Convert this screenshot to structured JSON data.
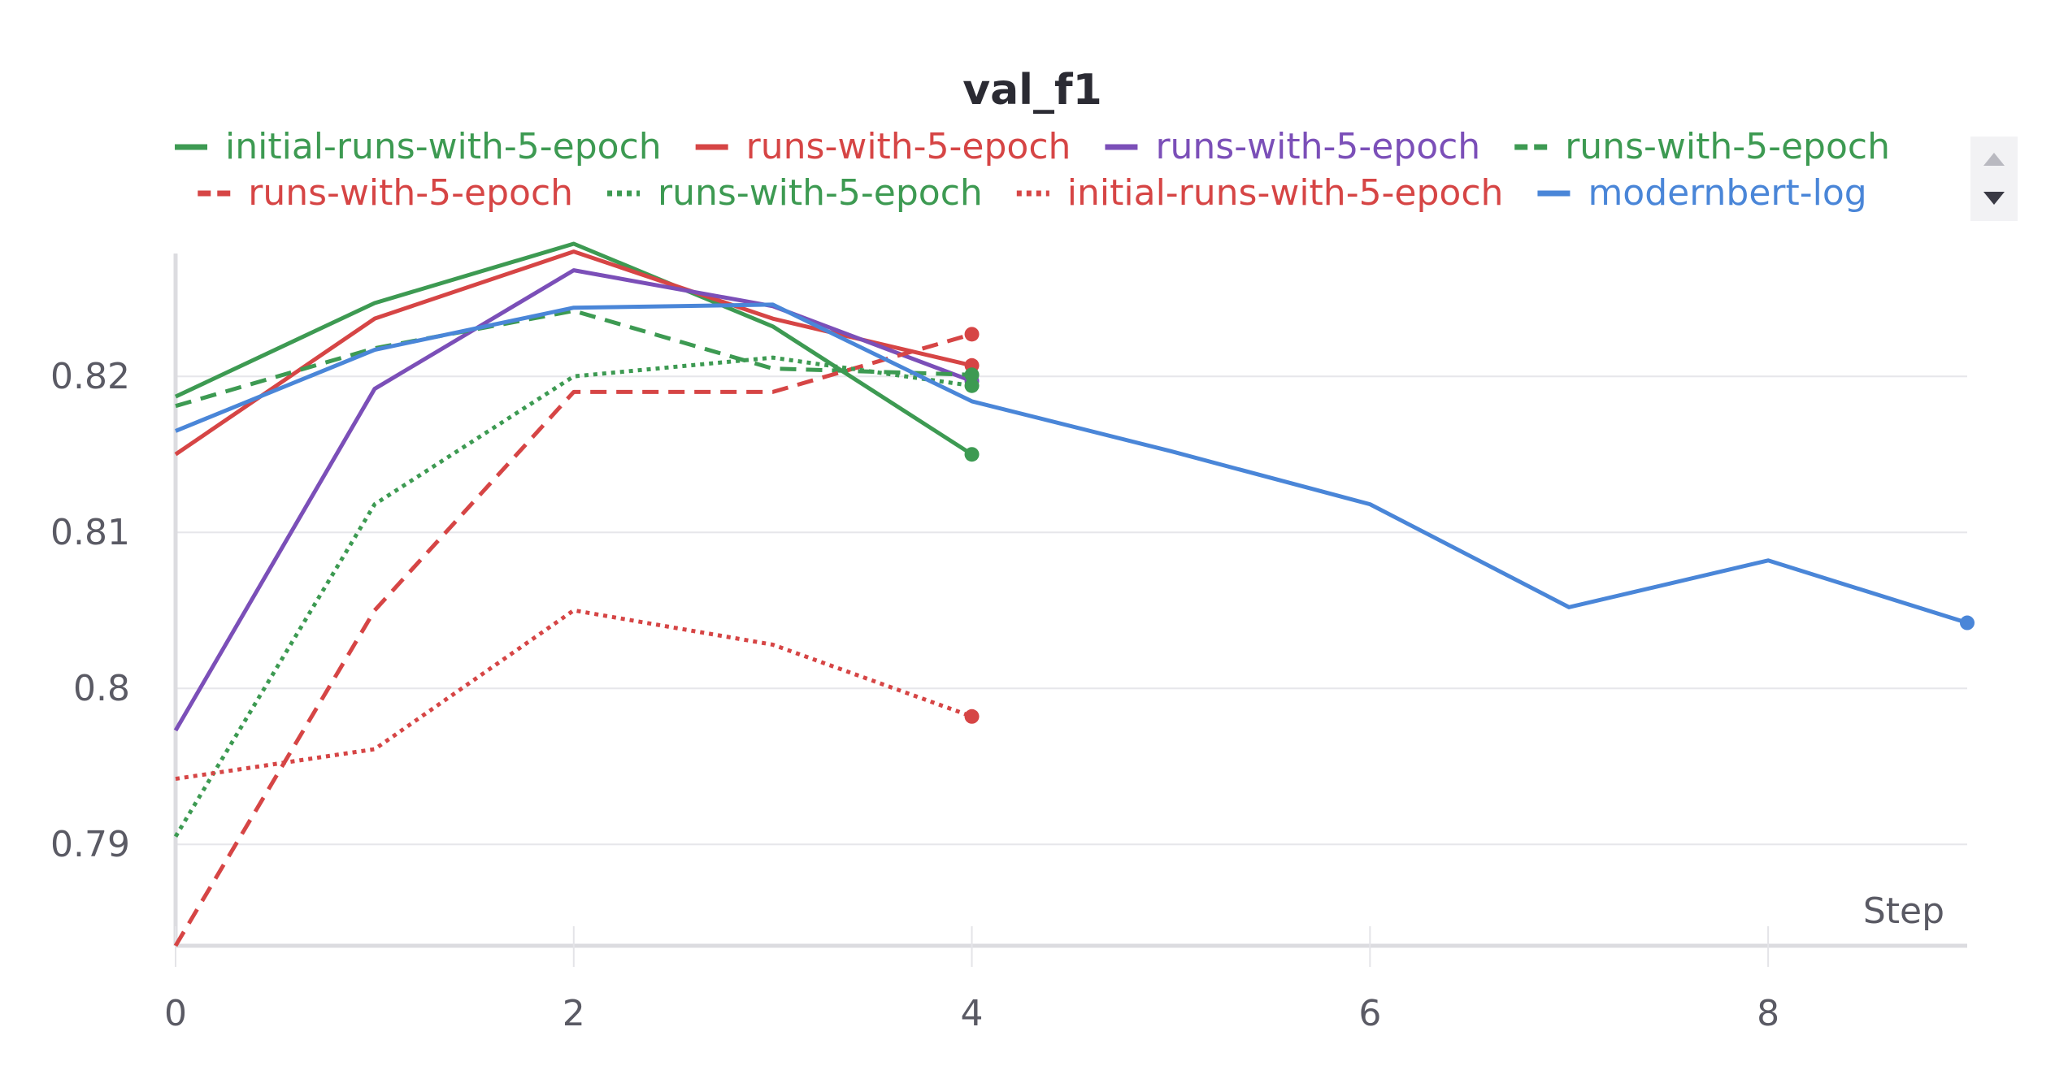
{
  "chart_data": {
    "type": "line",
    "title": "val_f1",
    "xlabel": "Step",
    "ylabel": "",
    "xlim": [
      0,
      9
    ],
    "ylim": [
      0.7835,
      0.8285
    ],
    "x_ticks": [
      "0",
      "2",
      "4",
      "6",
      "8"
    ],
    "y_ticks": [
      "0.79",
      "0.8",
      "0.81",
      "0.82"
    ],
    "grid": true,
    "legend_position": "top",
    "series": [
      {
        "name": "initial-runs-with-5-epoch",
        "color": "#3d9a52",
        "dash": "solid",
        "x": [
          0,
          1,
          2,
          3,
          4
        ],
        "y": [
          0.8187,
          0.8247,
          0.8285,
          0.8232,
          0.815
        ]
      },
      {
        "name": "runs-with-5-epoch",
        "color": "#d64545",
        "dash": "solid",
        "x": [
          0,
          1,
          2,
          3,
          4
        ],
        "y": [
          0.815,
          0.8237,
          0.828,
          0.8237,
          0.8207
        ]
      },
      {
        "name": "runs-with-5-epoch",
        "color": "#7b4fb8",
        "dash": "solid",
        "x": [
          0,
          1,
          2,
          3,
          4
        ],
        "y": [
          0.7973,
          0.8192,
          0.8268,
          0.8245,
          0.8197
        ]
      },
      {
        "name": "runs-with-5-epoch",
        "color": "#3d9a52",
        "dash": "dashed",
        "x": [
          0,
          1,
          2,
          3,
          4
        ],
        "y": [
          0.8181,
          0.8218,
          0.8242,
          0.8205,
          0.8201
        ]
      },
      {
        "name": "runs-with-5-epoch",
        "color": "#d64545",
        "dash": "dashed",
        "x": [
          0,
          1,
          2,
          3,
          4
        ],
        "y": [
          0.7835,
          0.805,
          0.819,
          0.819,
          0.8227
        ]
      },
      {
        "name": "runs-with-5-epoch",
        "color": "#3d9a52",
        "dash": "dotted",
        "x": [
          0,
          1,
          2,
          3,
          4
        ],
        "y": [
          0.7905,
          0.8118,
          0.82,
          0.8212,
          0.8194
        ]
      },
      {
        "name": "initial-runs-with-5-epoch",
        "color": "#d64545",
        "dash": "dotted",
        "x": [
          0,
          1,
          2,
          3,
          4
        ],
        "y": [
          0.7942,
          0.7961,
          0.805,
          0.8028,
          0.7982
        ]
      },
      {
        "name": "modernbert-log",
        "color": "#4a86d8",
        "dash": "solid",
        "x": [
          0,
          1,
          2,
          3,
          4,
          5,
          6,
          7,
          8,
          9
        ],
        "y": [
          0.8165,
          0.8217,
          0.8244,
          0.8246,
          0.8184,
          0.8152,
          0.8118,
          0.8052,
          0.8082,
          0.8042
        ]
      }
    ]
  }
}
